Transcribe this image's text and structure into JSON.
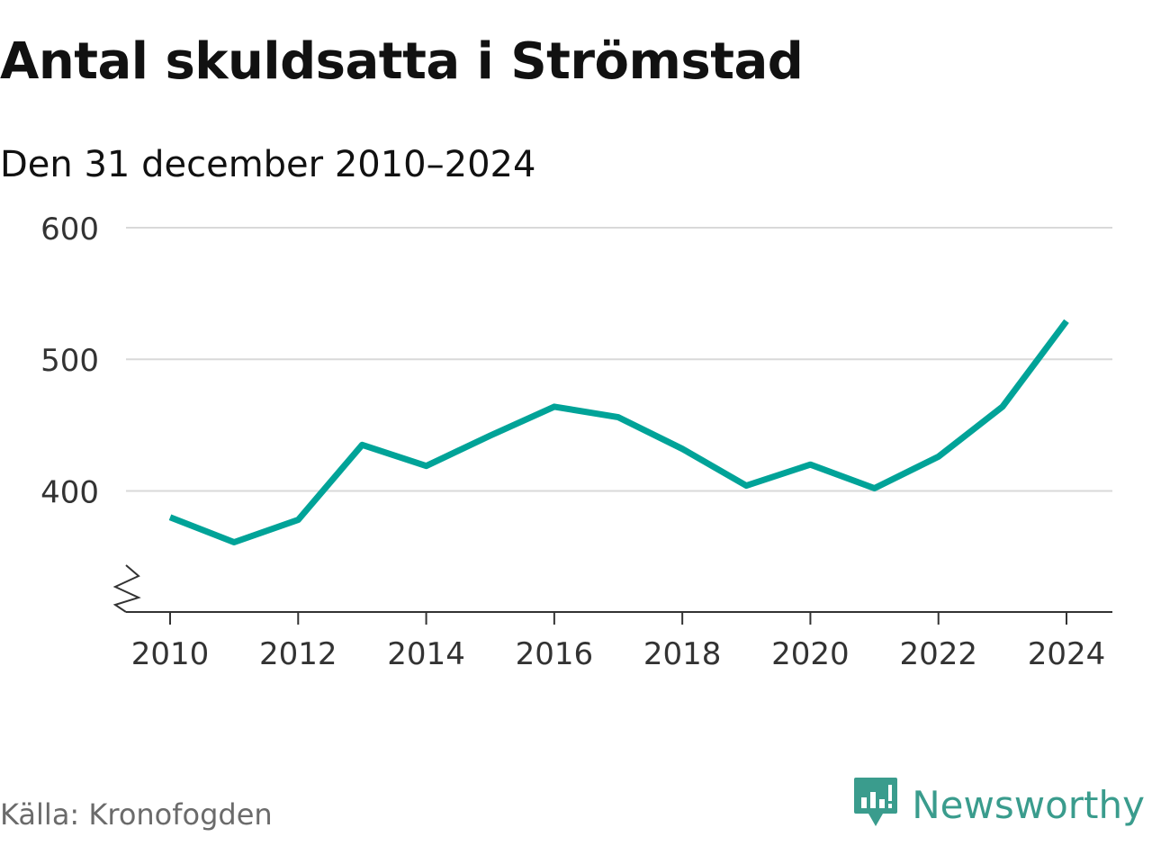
{
  "title": "Antal skuldsatta i Strömstad",
  "subtitle": "Den 31 december 2010–2024",
  "source": "Källa: Kronofogden",
  "brand": {
    "name": "Newsworthy",
    "icon": "newsworthy-logo-icon",
    "color": "#3a9c8d"
  },
  "colors": {
    "line": "#00a398",
    "grid": "#d9d9d9",
    "axis": "#333333",
    "tick_text": "#333333"
  },
  "chart_data": {
    "type": "line",
    "title": "Antal skuldsatta i Strömstad",
    "subtitle": "Den 31 december 2010–2024",
    "xlabel": "",
    "ylabel": "",
    "x": [
      2010,
      2011,
      2012,
      2013,
      2014,
      2015,
      2016,
      2017,
      2018,
      2019,
      2020,
      2021,
      2022,
      2023,
      2024
    ],
    "series": [
      {
        "values": [
          380,
          361,
          378,
          435,
          419,
          442,
          464,
          456,
          432,
          404,
          420,
          402,
          426,
          464,
          529
        ]
      }
    ],
    "xticks": [
      "2010",
      "2012",
      "2014",
      "2016",
      "2018",
      "2020",
      "2022",
      "2024"
    ],
    "yticks": [
      "400",
      "500",
      "600"
    ],
    "ylim": [
      308,
      600
    ],
    "axis_break": true,
    "grid": true,
    "legend": "none"
  }
}
